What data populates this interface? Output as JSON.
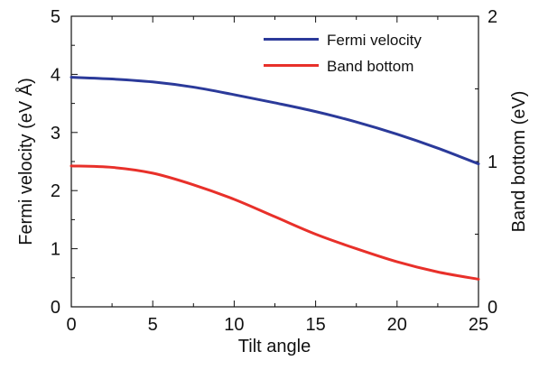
{
  "chart_data": {
    "type": "line",
    "xlabel": "Tilt angle",
    "ylabel_left": "Fermi velocity (eV Å)",
    "ylabel_right": "Band bottom (eV)",
    "xlim": [
      0,
      25
    ],
    "ylim_left": [
      0,
      5
    ],
    "ylim_right": [
      0,
      2
    ],
    "x_ticks": [
      0,
      5,
      10,
      15,
      20,
      25
    ],
    "y_ticks_left": [
      0,
      1,
      2,
      3,
      4,
      5
    ],
    "y_ticks_right": [
      0,
      1,
      2
    ],
    "grid": false,
    "legend_position": "top-right",
    "series": [
      {
        "name": "Fermi velocity",
        "axis": "left",
        "color": "#2b3a9a",
        "x": [
          0,
          2.5,
          5,
          7.5,
          10,
          12.5,
          15,
          17.5,
          20,
          22.5,
          25
        ],
        "y": [
          3.95,
          3.92,
          3.87,
          3.78,
          3.65,
          3.51,
          3.36,
          3.18,
          2.97,
          2.73,
          2.46
        ]
      },
      {
        "name": "Band bottom",
        "axis": "right",
        "color": "#e8302a",
        "x": [
          0,
          2.5,
          5,
          7.5,
          10,
          12.5,
          15,
          17.5,
          20,
          22.5,
          25
        ],
        "y": [
          0.97,
          0.96,
          0.92,
          0.84,
          0.74,
          0.62,
          0.5,
          0.4,
          0.31,
          0.24,
          0.19
        ]
      }
    ]
  }
}
